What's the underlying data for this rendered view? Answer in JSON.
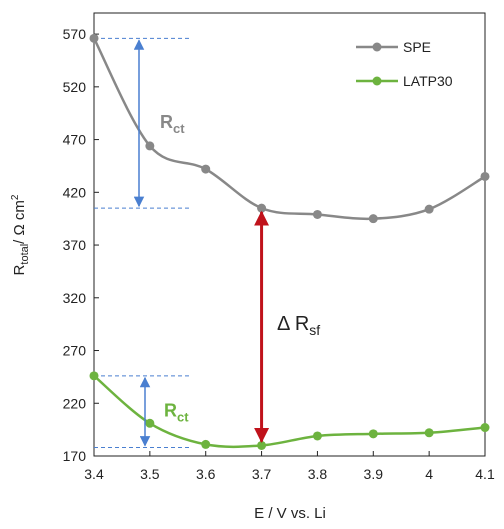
{
  "chart_data": {
    "type": "line",
    "xlabel": "E / V vs. Li",
    "ylabel": {
      "main": "R",
      "sub": "total",
      "rest": "/ Ω cm",
      "sup": "2"
    },
    "xlim": [
      3.4,
      4.1
    ],
    "ylim": [
      170,
      590
    ],
    "x_ticks": [
      "3.4",
      "3.5",
      "3.6",
      "3.7",
      "3.8",
      "3.9",
      "4",
      "4.1"
    ],
    "y_ticks": [
      "170",
      "220",
      "270",
      "320",
      "370",
      "420",
      "470",
      "520",
      "570"
    ],
    "grid": false,
    "legend_position": "top-right",
    "series": [
      {
        "name": "SPE",
        "color": "#888888",
        "x": [
          3.4,
          3.5,
          3.6,
          3.7,
          3.8,
          3.9,
          4.0,
          4.1
        ],
        "y": [
          566,
          464,
          442,
          405,
          399,
          395,
          404,
          435
        ]
      },
      {
        "name": "LATP30",
        "color": "#6db33f",
        "x": [
          3.4,
          3.5,
          3.6,
          3.7,
          3.8,
          3.9,
          4.0,
          4.1
        ],
        "y": [
          246,
          201,
          181,
          180,
          189,
          191,
          192,
          197
        ]
      }
    ],
    "annotations": {
      "rct_spe": {
        "main": "R",
        "sub": "ct",
        "color": "#888888",
        "x_at": 3.4,
        "y_from": 566,
        "y_to": 405
      },
      "rct_latp": {
        "main": "R",
        "sub": "ct",
        "color": "#6db33f",
        "x_at": 3.4,
        "y_from": 246,
        "y_to": 178
      },
      "delta_rsf": {
        "main": "Δ R",
        "sub": "sf",
        "color": "#c0121b",
        "x_at": 3.7,
        "y_from": 405,
        "y_to": 180
      }
    }
  }
}
